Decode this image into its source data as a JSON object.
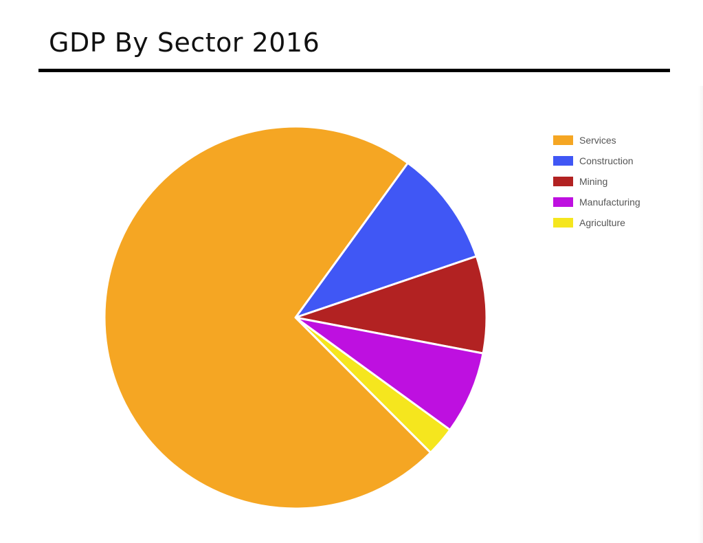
{
  "page": {
    "title": "GDP By Sector 2016"
  },
  "chart_data": {
    "type": "pie",
    "title": "GDP By Sector 2016",
    "categories": [
      "Services",
      "Construction",
      "Mining",
      "Manufacturing",
      "Agriculture"
    ],
    "values": [
      72.5,
      9.8,
      8.2,
      7.0,
      2.5
    ],
    "colors": [
      "#F5A623",
      "#4057F5",
      "#B22222",
      "#BE10E0",
      "#F5E61E"
    ],
    "start_category": "Construction",
    "legend": {
      "position": "right",
      "items": [
        "Services",
        "Construction",
        "Mining",
        "Manufacturing",
        "Agriculture"
      ]
    }
  }
}
